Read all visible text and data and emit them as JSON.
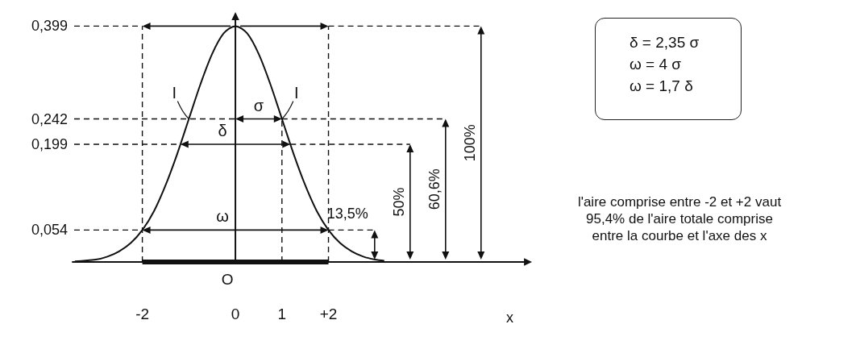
{
  "chart_data": {
    "type": "line",
    "xlabel": "x",
    "marker": "none",
    "line_style": "solid",
    "series": [
      {
        "color": "#111111",
        "x": [
          -3.45,
          -3.0,
          -2.75,
          -2.5,
          -2.25,
          -2.0,
          -1.75,
          -1.5,
          -1.25,
          -1.0,
          -0.75,
          -0.5,
          -0.25,
          0,
          0.25,
          0.5,
          0.75,
          1.0,
          1.25,
          1.5,
          1.75,
          2.0,
          2.25,
          2.5,
          2.75,
          3.0,
          3.2
        ],
        "values": [
          0.001,
          0.004,
          0.009,
          0.018,
          0.032,
          0.054,
          0.086,
          0.13,
          0.183,
          0.242,
          0.301,
          0.352,
          0.387,
          0.399,
          0.387,
          0.352,
          0.301,
          0.242,
          0.183,
          0.13,
          0.086,
          0.054,
          0.032,
          0.018,
          0.009,
          0.004,
          0.002
        ]
      },
      {
        "color": "#111111",
        "x": [
          -2,
          2
        ],
        "values": [
          0,
          0
        ]
      }
    ],
    "xlim": [
      -3.5,
      6.2
    ],
    "ylim": [
      0,
      0.42
    ],
    "xticks": [
      -2,
      0,
      1,
      {
        "value": 2,
        "label": "+2"
      }
    ],
    "yticks": [
      {
        "value": 0.054,
        "label": "0,054"
      },
      {
        "value": 0.199,
        "label": "0,199"
      },
      {
        "value": 0.242,
        "label": "0,242"
      },
      {
        "value": 0.399,
        "label": "0,399"
      }
    ],
    "ref_lines": [
      {
        "axis": "y",
        "value": 0.399,
        "line_style": "dashed"
      },
      {
        "axis": "y",
        "value": 0.242,
        "line_style": "dashed"
      },
      {
        "axis": "y",
        "value": 0.199,
        "line_style": "dashed"
      },
      {
        "axis": "y",
        "value": 0.054,
        "line_style": "dashed"
      },
      {
        "axis": "x",
        "value": -2,
        "line_style": "dashed"
      },
      {
        "axis": "x",
        "value": 1,
        "line_style": "dashed"
      },
      {
        "axis": "x",
        "value": 2,
        "line_style": "dashed"
      },
      {
        "axis": "x",
        "value": 0,
        "line_style": "solid"
      }
    ],
    "annotations": [
      {
        "text": "I",
        "x": -1,
        "y": 0.242
      },
      {
        "text": "I",
        "x": 1,
        "y": 0.242
      },
      {
        "text": "σ",
        "x": 0,
        "y": 0.242
      },
      {
        "text": "δ",
        "x": 0,
        "y": 0.199
      },
      {
        "text": "ω",
        "x": 0,
        "y": 0.054
      },
      {
        "text": "O",
        "x": 0,
        "y": 0
      },
      "13,5%",
      "50%",
      "60,6%",
      "100%",
      "δ = 2,35 σ",
      "ω = 4 σ",
      "ω = 1,7 δ",
      "l'aire comprise entre -2 et +2 vaut 95,4% de l'aire totale comprise entre la courbe et l'axe des x"
    ]
  }
}
